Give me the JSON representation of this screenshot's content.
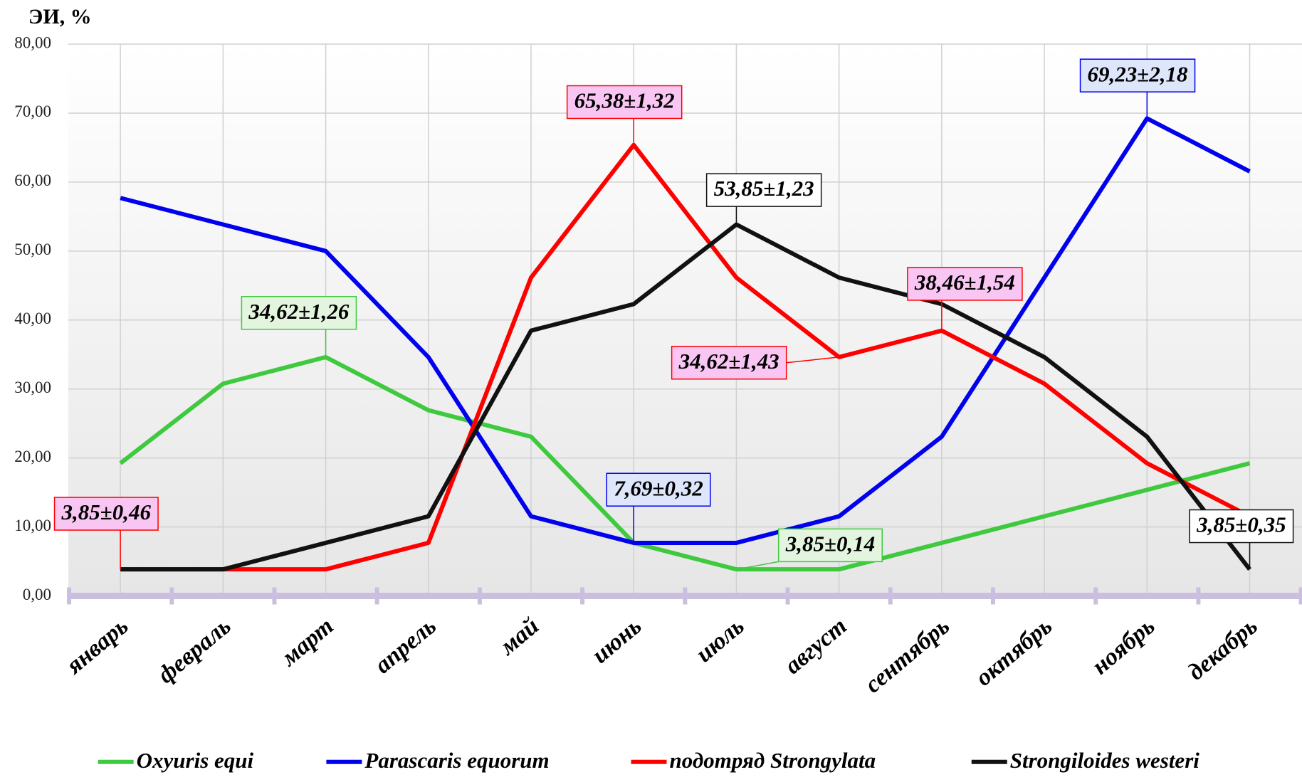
{
  "chart_data": {
    "type": "line",
    "y_label": "ЭИ, %",
    "categories": [
      "январь",
      "февраль",
      "март",
      "апрель",
      "май",
      "июнь",
      "июль",
      "август",
      "сентябрь",
      "октябрь",
      "ноябрь",
      "декабрь"
    ],
    "ylim": [
      0,
      80
    ],
    "yticks": [
      {
        "value": 0,
        "label": "0,00"
      },
      {
        "value": 10,
        "label": "10,00"
      },
      {
        "value": 20,
        "label": "20,00"
      },
      {
        "value": 30,
        "label": "30,00"
      },
      {
        "value": 40,
        "label": "40,00"
      },
      {
        "value": 50,
        "label": "50,00"
      },
      {
        "value": 60,
        "label": "60,00"
      },
      {
        "value": 70,
        "label": "70,00"
      },
      {
        "value": 80,
        "label": "80,00"
      }
    ],
    "grid": true,
    "legend": "bottom",
    "series": [
      {
        "name": "Oxyuris equi",
        "color": "#3ec93e",
        "values": [
          19.23,
          30.77,
          34.62,
          26.92,
          23.08,
          7.69,
          3.85,
          3.85,
          7.69,
          11.54,
          15.38,
          19.23
        ],
        "value_labels": [
          null,
          null,
          "34,62±1,26",
          null,
          null,
          null,
          "3,85±0,14",
          null,
          null,
          null,
          null,
          null
        ]
      },
      {
        "name": "Parascaris equorum",
        "color": "#0000ee",
        "values": [
          57.69,
          53.85,
          50.0,
          34.62,
          11.54,
          7.69,
          7.69,
          11.54,
          23.08,
          46.15,
          69.23,
          61.54
        ],
        "value_labels": [
          null,
          null,
          null,
          null,
          null,
          "7,69±0,32",
          null,
          null,
          null,
          null,
          "69,23±2,18",
          null
        ]
      },
      {
        "name": "подотряд  Strongylata",
        "color": "#ff0000",
        "values": [
          3.85,
          3.85,
          3.85,
          7.69,
          46.15,
          65.38,
          46.15,
          34.62,
          38.46,
          30.77,
          19.23,
          11.54
        ],
        "value_labels": [
          "3,85±0,46",
          null,
          null,
          null,
          null,
          "65,38±1,32",
          null,
          "34,62±1,43",
          "38,46±1,54",
          null,
          null,
          null
        ]
      },
      {
        "name": "Strongiloides westeri",
        "color": "#111111",
        "values": [
          3.85,
          3.85,
          7.69,
          11.54,
          38.46,
          42.31,
          53.85,
          46.15,
          42.31,
          34.62,
          23.08,
          3.85
        ],
        "value_labels": [
          null,
          null,
          null,
          null,
          null,
          null,
          "53,85±1,23",
          null,
          null,
          null,
          null,
          "3,85±0,35"
        ]
      }
    ]
  }
}
